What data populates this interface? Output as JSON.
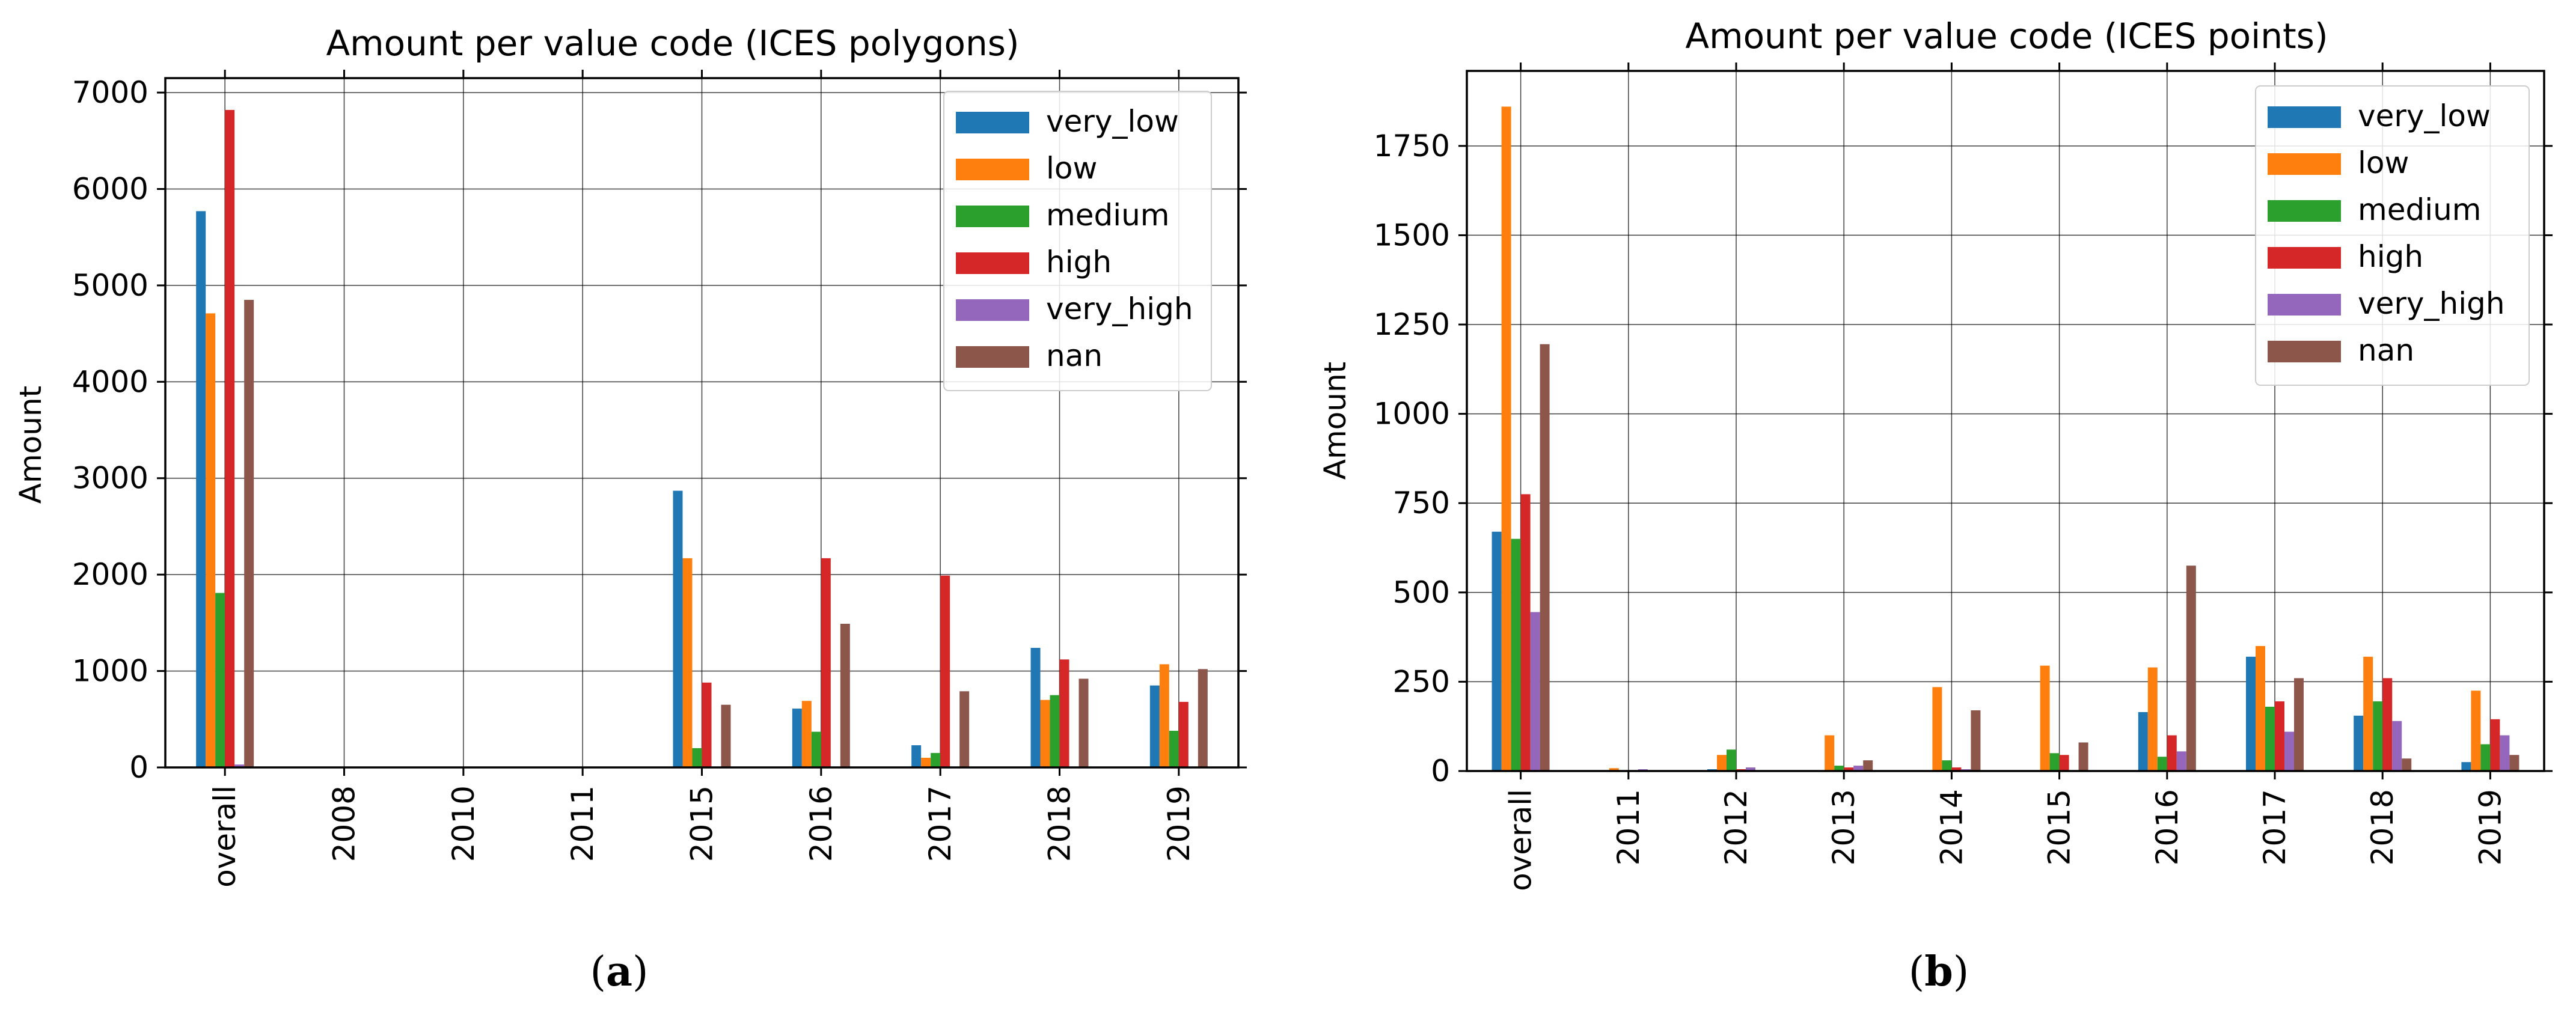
{
  "chart_data": [
    {
      "type": "bar",
      "title": "Amount per value code (ICES polygons)",
      "xlabel": "",
      "ylabel": "Amount",
      "ylim": [
        0,
        7150
      ],
      "yticks": [
        0,
        1000,
        2000,
        3000,
        4000,
        5000,
        6000,
        7000
      ],
      "grid": true,
      "legend": "top-right",
      "caption": "(a)",
      "caption_bold": "a",
      "categories": [
        "overall",
        "2008",
        "2010",
        "2011",
        "2015",
        "2016",
        "2017",
        "2018",
        "2019"
      ],
      "series": [
        {
          "name": "very_low",
          "color": "#1f77b4",
          "values": [
            5770,
            0,
            0,
            0,
            2870,
            610,
            230,
            1240,
            850
          ]
        },
        {
          "name": "low",
          "color": "#ff7f0e",
          "values": [
            4710,
            0,
            0,
            0,
            2170,
            690,
            100,
            700,
            1070
          ]
        },
        {
          "name": "medium",
          "color": "#2ca02c",
          "values": [
            1810,
            0,
            0,
            0,
            200,
            370,
            150,
            750,
            380
          ]
        },
        {
          "name": "high",
          "color": "#d62728",
          "values": [
            6820,
            0,
            0,
            0,
            880,
            2170,
            1990,
            1120,
            680
          ]
        },
        {
          "name": "very_high",
          "color": "#9467bd",
          "values": [
            30,
            0,
            0,
            0,
            0,
            0,
            0,
            0,
            0
          ]
        },
        {
          "name": "nan",
          "color": "#8c564b",
          "values": [
            4850,
            0,
            0,
            0,
            650,
            1490,
            790,
            920,
            1020
          ]
        }
      ]
    },
    {
      "type": "bar",
      "title": "Amount per value code (ICES points)",
      "xlabel": "",
      "ylabel": "Amount",
      "ylim": [
        0,
        1960
      ],
      "yticks": [
        0,
        250,
        500,
        750,
        1000,
        1250,
        1500,
        1750
      ],
      "grid": true,
      "legend": "top-right",
      "caption": "(b)",
      "caption_bold": "b",
      "categories": [
        "overall",
        "2011",
        "2012",
        "2013",
        "2014",
        "2015",
        "2016",
        "2017",
        "2018",
        "2019"
      ],
      "series": [
        {
          "name": "very_low",
          "color": "#1f77b4",
          "values": [
            670,
            0,
            5,
            0,
            0,
            0,
            165,
            320,
            155,
            25
          ]
        },
        {
          "name": "low",
          "color": "#ff7f0e",
          "values": [
            1860,
            8,
            45,
            100,
            235,
            295,
            290,
            350,
            320,
            225
          ]
        },
        {
          "name": "medium",
          "color": "#2ca02c",
          "values": [
            650,
            0,
            60,
            15,
            30,
            50,
            40,
            180,
            195,
            75
          ]
        },
        {
          "name": "high",
          "color": "#d62728",
          "values": [
            775,
            0,
            5,
            10,
            10,
            45,
            100,
            195,
            260,
            145
          ]
        },
        {
          "name": "very_high",
          "color": "#9467bd",
          "values": [
            445,
            5,
            10,
            15,
            5,
            0,
            55,
            110,
            140,
            100
          ]
        },
        {
          "name": "nan",
          "color": "#8c564b",
          "values": [
            1195,
            0,
            0,
            30,
            170,
            80,
            575,
            260,
            35,
            45
          ]
        }
      ]
    }
  ]
}
